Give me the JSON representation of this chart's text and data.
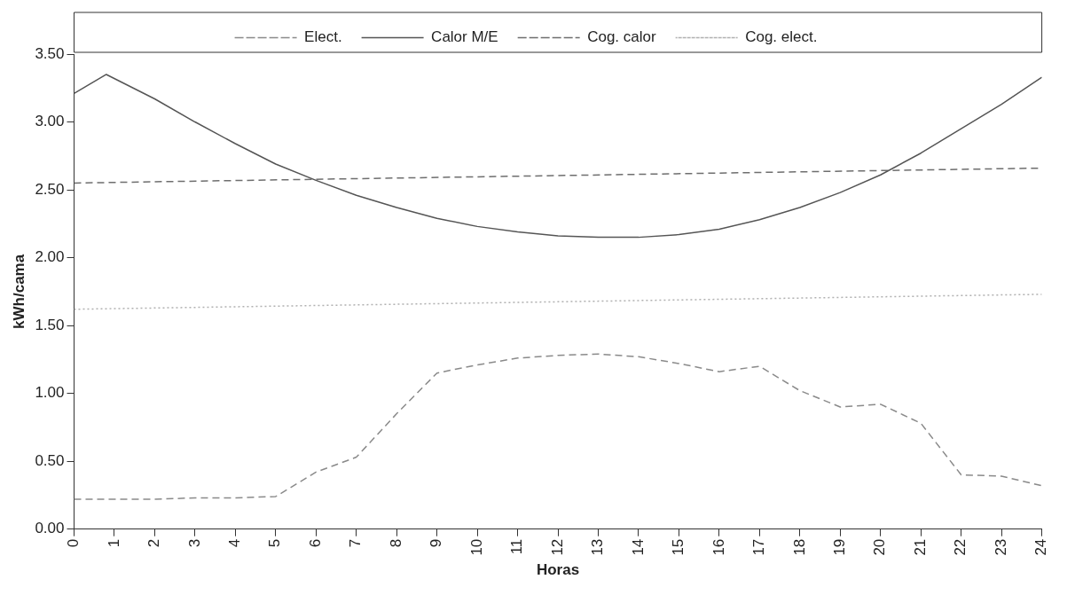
{
  "chart_data": {
    "type": "line",
    "xlabel": "Horas",
    "ylabel": "kWh/cama",
    "x": [
      0,
      1,
      2,
      3,
      4,
      5,
      6,
      7,
      8,
      9,
      10,
      11,
      12,
      13,
      14,
      15,
      16,
      17,
      18,
      19,
      20,
      21,
      22,
      23,
      24
    ],
    "series": [
      {
        "name": "Elect.",
        "color": "#8a8a8a",
        "line_style": "dashed",
        "values": [
          0.22,
          0.22,
          0.22,
          0.23,
          0.23,
          0.24,
          0.42,
          0.53,
          0.85,
          1.15,
          1.21,
          1.26,
          1.28,
          1.29,
          1.27,
          1.22,
          1.16,
          1.2,
          1.02,
          0.9,
          0.92,
          0.78,
          0.4,
          0.39,
          0.32
        ]
      },
      {
        "name": "Calor M/E",
        "color": "#555555",
        "line_style": "solid",
        "x": [
          0,
          0.8,
          2,
          3,
          4,
          5,
          6,
          7,
          8,
          9,
          10,
          11,
          12,
          13,
          14,
          15,
          16,
          17,
          18,
          19,
          20,
          21,
          22,
          23,
          24
        ],
        "values": [
          3.21,
          3.35,
          3.17,
          3.0,
          2.84,
          2.69,
          2.57,
          2.46,
          2.37,
          2.29,
          2.23,
          2.19,
          2.16,
          2.15,
          2.15,
          2.17,
          2.21,
          2.28,
          2.37,
          2.48,
          2.61,
          2.77,
          2.95,
          3.13,
          3.33
        ]
      },
      {
        "name": "Cog. calor",
        "color": "#6e6e6e",
        "line_style": "dashed",
        "x": [
          0,
          24
        ],
        "values": [
          2.55,
          2.66
        ]
      },
      {
        "name": "Cog. elect.",
        "color": "#b0b0b0",
        "line_style": "dotted",
        "x": [
          0,
          24
        ],
        "values": [
          1.62,
          1.73
        ]
      }
    ],
    "xlim": [
      0,
      24
    ],
    "xticks": [
      0,
      1,
      2,
      3,
      4,
      5,
      6,
      7,
      8,
      9,
      10,
      11,
      12,
      13,
      14,
      15,
      16,
      17,
      18,
      19,
      20,
      21,
      22,
      23,
      24
    ],
    "ylim": [
      0,
      3.5
    ],
    "yticks": [
      {
        "value": 0,
        "label": "0.00"
      },
      {
        "value": 0.5,
        "label": "0.50"
      },
      {
        "value": 1,
        "label": "1.00"
      },
      {
        "value": 1.5,
        "label": "1.50"
      },
      {
        "value": 2,
        "label": "2.00"
      },
      {
        "value": 2.5,
        "label": "2.50"
      },
      {
        "value": 3,
        "label": "3.00"
      },
      {
        "value": 3.5,
        "label": "3.50"
      }
    ],
    "grid": false,
    "legend": "top",
    "marker": "none"
  }
}
